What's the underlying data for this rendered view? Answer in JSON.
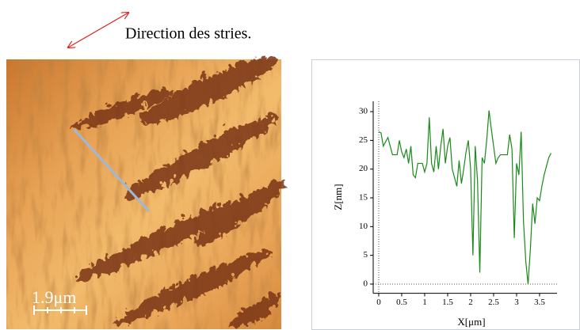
{
  "chart_data": {
    "type": "line",
    "annotations": [
      "Direction des stries.",
      "1.9μm"
    ],
    "x_label": "X[μm]",
    "y_label": "Z[nm]",
    "x": [
      0,
      0.05,
      0.1,
      0.2,
      0.3,
      0.4,
      0.45,
      0.5,
      0.55,
      0.6,
      0.65,
      0.7,
      0.75,
      0.8,
      0.85,
      0.95,
      1.0,
      1.05,
      1.1,
      1.15,
      1.2,
      1.25,
      1.3,
      1.35,
      1.4,
      1.45,
      1.5,
      1.55,
      1.6,
      1.7,
      1.75,
      1.8,
      1.85,
      1.9,
      1.95,
      2.0,
      2.05,
      2.1,
      2.15,
      2.2,
      2.25,
      2.3,
      2.35,
      2.4,
      2.45,
      2.5,
      2.55,
      2.6,
      2.65,
      2.7,
      2.75,
      2.8,
      2.85,
      2.9,
      2.95,
      3.0,
      3.05,
      3.1,
      3.15,
      3.2,
      3.25,
      3.3,
      3.35,
      3.4,
      3.45,
      3.5,
      3.55,
      3.6,
      3.65,
      3.7,
      3.75
    ],
    "series": [
      {
        "color": "#1a8a1a",
        "values": [
          26.5,
          26.3,
          24,
          25.5,
          22.5,
          22.5,
          25,
          23,
          22,
          23.5,
          21,
          24,
          19,
          18.5,
          21,
          21,
          19.5,
          21,
          29,
          21,
          19.5,
          24,
          20,
          24,
          27,
          21,
          24,
          25.5,
          20,
          17,
          21.5,
          17.5,
          20,
          23,
          25,
          20,
          5,
          24,
          18,
          2,
          22,
          21,
          25,
          30.2,
          27,
          24,
          21,
          22,
          22.5,
          22.5,
          22.5,
          22.5,
          26,
          23.5,
          8,
          21,
          19,
          26.5,
          11,
          4,
          0,
          6,
          14,
          10.5,
          15,
          14.5,
          17,
          19,
          20.5,
          22,
          22.8
        ]
      }
    ],
    "xlim": [
      -0.12,
      3.88
    ],
    "ylim": [
      -1.6,
      31.8
    ],
    "xticks": [
      0,
      0.5,
      1,
      1.5,
      2,
      2.5,
      3,
      3.5
    ],
    "yticks": [
      0,
      5,
      10,
      15,
      20,
      25,
      30
    ],
    "grid": false
  }
}
